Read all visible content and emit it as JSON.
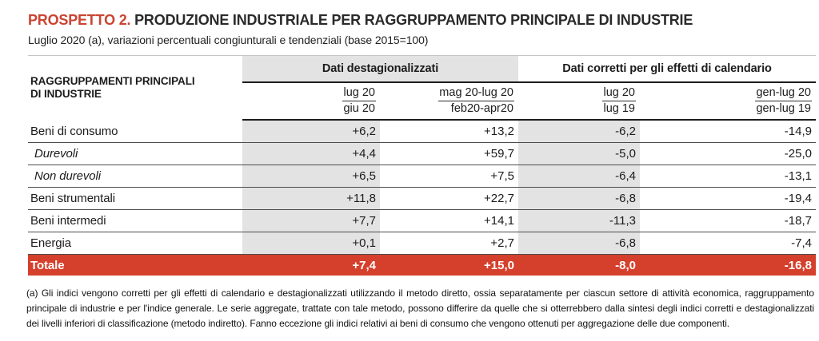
{
  "title": {
    "label": "PROSPETTO 2.",
    "text": "PRODUZIONE INDUSTRIALE PER RAGGRUPPAMENTO PRINCIPALE DI INDUSTRIE"
  },
  "subtitle": "Luglio 2020 (a), variazioni percentuali congiunturali e tendenziali (base 2015=100)",
  "table": {
    "row_header": "RAGGRUPPAMENTI PRINCIPALI DI INDUSTRIE",
    "groups": [
      {
        "label": "Dati destagionalizzati"
      },
      {
        "label": "Dati corretti per gli effetti di calendario"
      }
    ],
    "columns": [
      {
        "top": "lug 20",
        "bottom": "giu 20"
      },
      {
        "top": "mag 20-lug 20",
        "bottom": "feb20-apr20"
      },
      {
        "top": "lug 20",
        "bottom": "lug 19"
      },
      {
        "top": "gen-lug 20",
        "bottom": "gen-lug 19"
      }
    ],
    "rows": [
      {
        "label": "Beni di consumo",
        "italic": false,
        "values": [
          "+6,2",
          "+13,2",
          "-6,2",
          "-14,9"
        ]
      },
      {
        "label": "Durevoli",
        "italic": true,
        "values": [
          "+4,4",
          "+59,7",
          "-5,0",
          "-25,0"
        ]
      },
      {
        "label": "Non durevoli",
        "italic": true,
        "values": [
          "+6,5",
          "+7,5",
          "-6,4",
          "-13,1"
        ]
      },
      {
        "label": "Beni strumentali",
        "italic": false,
        "values": [
          "+11,8",
          "+22,7",
          "-6,8",
          "-19,4"
        ]
      },
      {
        "label": "Beni intermedi",
        "italic": false,
        "values": [
          "+7,7",
          "+14,1",
          "-11,3",
          "-18,7"
        ]
      },
      {
        "label": "Energia",
        "italic": false,
        "values": [
          "+0,1",
          "+2,7",
          "-6,8",
          "-7,4"
        ]
      }
    ],
    "total_row": {
      "label": "Totale",
      "values": [
        "+7,4",
        "+15,0",
        "-8,0",
        "-16,8"
      ]
    }
  },
  "footnote": "(a) Gli indici vengono corretti per gli effetti di calendario e destagionalizzati utilizzando il metodo diretto, ossia separatamente per ciascun settore di attività economica, raggruppamento principale di industrie e per l'indice generale. Le serie aggregate, trattate con tale metodo, possono differire da quelle che si otterrebbero dalla sintesi degli indici corretti e destagionalizzati dei livelli inferiori di classificazione (metodo indiretto). Fanno eccezione gli indici relativi ai beni di consumo che vengono ottenuti per aggregazione delle due componenti.",
  "colors": {
    "accent_red": "#d5402c",
    "title_red": "#cb4331",
    "column_gray": "#e3e3e3"
  }
}
